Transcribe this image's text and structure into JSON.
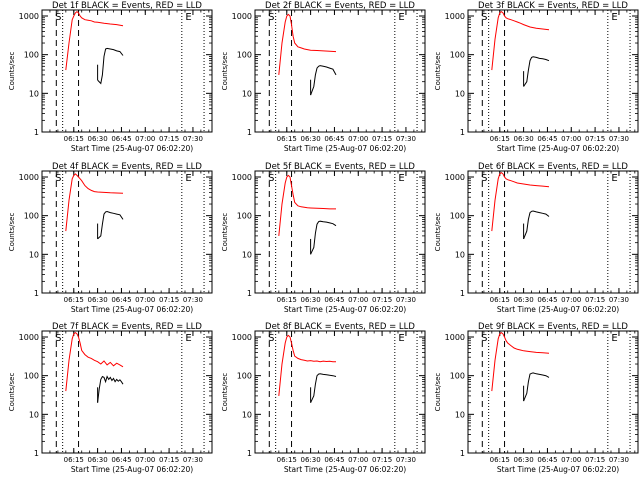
{
  "chart_data": [
    {
      "type": "line",
      "title": "Det 1f BLACK = Events, RED = LLD",
      "ylabel": "Counts/sec",
      "xlabel": "Start Time (25-Aug-07 06:02:20)",
      "xticks": [
        "06:15",
        "06:30",
        "06:45",
        "07:00",
        "07:15",
        "07:30"
      ],
      "yticks": [
        "1",
        "10",
        "100",
        "1000"
      ],
      "ylim": [
        1,
        1000
      ],
      "yscale": "log",
      "markers": [
        {
          "label": "S",
          "x": "06:02"
        },
        {
          "label": "E",
          "x": "07:24"
        }
      ],
      "series": [
        {
          "color": "#000000",
          "x": [
            0,
            2,
            3,
            4,
            5,
            6,
            8,
            10,
            12,
            14,
            16
          ],
          "values": [
            22,
            18,
            30,
            90,
            140,
            145,
            140,
            135,
            125,
            120,
            95
          ]
        },
        {
          "color": "#ff0000",
          "x": [
            -20,
            -18,
            -16,
            -15,
            -14,
            -13,
            -12,
            -11,
            -10,
            -8,
            -6,
            -4,
            -2,
            0,
            4,
            8,
            12,
            16
          ],
          "values": [
            40,
            200,
            800,
            1000,
            1200,
            1300,
            1200,
            1000,
            900,
            800,
            780,
            750,
            700,
            690,
            650,
            620,
            600,
            560
          ]
        }
      ]
    },
    {
      "type": "line",
      "title": "Det 2f BLACK = Events, RED = LLD",
      "ylabel": "Counts/sec",
      "xlabel": "Start Time (25-Aug-07 06:02:20)",
      "xticks": [
        "06:15",
        "06:30",
        "06:45",
        "07:00",
        "07:15",
        "07:30"
      ],
      "yticks": [
        "1",
        "10",
        "100",
        "1000"
      ],
      "ylim": [
        1,
        1000
      ],
      "yscale": "log",
      "markers": [
        {
          "label": "S",
          "x": "06:02"
        },
        {
          "label": "E",
          "x": "07:24"
        }
      ],
      "series": [
        {
          "color": "#000000",
          "x": [
            0,
            2,
            3,
            4,
            5,
            6,
            8,
            10,
            12,
            14,
            16
          ],
          "values": [
            9,
            15,
            30,
            45,
            50,
            52,
            50,
            48,
            45,
            42,
            30
          ]
        },
        {
          "color": "#ff0000",
          "x": [
            -20,
            -18,
            -16,
            -15,
            -14,
            -13,
            -12,
            -11,
            -10,
            -8,
            -6,
            -4,
            -2,
            0,
            4,
            8,
            12,
            16
          ],
          "values": [
            30,
            200,
            700,
            1000,
            1100,
            1000,
            600,
            300,
            200,
            160,
            150,
            140,
            135,
            130,
            128,
            125,
            122,
            120
          ]
        }
      ]
    },
    {
      "type": "line",
      "title": "Det 3f BLACK = Events, RED = LLD",
      "ylabel": "Counts/sec",
      "xlabel": "Start Time (25-Aug-07 06:02:20)",
      "xticks": [
        "06:15",
        "06:30",
        "06:45",
        "07:00",
        "07:15",
        "07:30"
      ],
      "yticks": [
        "1",
        "10",
        "100",
        "1000"
      ],
      "ylim": [
        1,
        1000
      ],
      "yscale": "log",
      "markers": [
        {
          "label": "S",
          "x": "06:02"
        },
        {
          "label": "E",
          "x": "07:24"
        }
      ],
      "series": [
        {
          "color": "#000000",
          "x": [
            0,
            2,
            3,
            4,
            5,
            6,
            8,
            10,
            12,
            14,
            16
          ],
          "values": [
            15,
            20,
            40,
            70,
            85,
            88,
            85,
            80,
            78,
            75,
            70
          ]
        },
        {
          "color": "#ff0000",
          "x": [
            -20,
            -18,
            -16,
            -15,
            -14,
            -13,
            -12,
            -11,
            -10,
            -8,
            -6,
            -4,
            -2,
            0,
            4,
            8,
            12,
            16
          ],
          "values": [
            40,
            250,
            900,
            1200,
            1300,
            1200,
            1000,
            900,
            850,
            800,
            750,
            700,
            650,
            600,
            520,
            480,
            460,
            440
          ]
        }
      ]
    },
    {
      "type": "line",
      "title": "Det 4f BLACK = Events, RED = LLD",
      "ylabel": "Counts/sec",
      "xlabel": "Start Time (25-Aug-07 06:02:20)",
      "xticks": [
        "06:15",
        "06:30",
        "06:45",
        "07:00",
        "07:15",
        "07:30"
      ],
      "yticks": [
        "1",
        "10",
        "100",
        "1000"
      ],
      "ylim": [
        1,
        1000
      ],
      "yscale": "log",
      "markers": [
        {
          "label": "S",
          "x": "06:02"
        },
        {
          "label": "E",
          "x": "07:24"
        }
      ],
      "series": [
        {
          "color": "#000000",
          "x": [
            0,
            2,
            3,
            4,
            5,
            6,
            8,
            10,
            12,
            14,
            16
          ],
          "values": [
            25,
            30,
            60,
            110,
            125,
            128,
            120,
            115,
            110,
            105,
            80
          ]
        },
        {
          "color": "#ff0000",
          "x": [
            -20,
            -18,
            -16,
            -15,
            -14,
            -13,
            -12,
            -11,
            -10,
            -8,
            -6,
            -4,
            -2,
            0,
            4,
            8,
            12,
            16
          ],
          "values": [
            40,
            250,
            900,
            1100,
            1200,
            1100,
            1000,
            900,
            800,
            600,
            500,
            450,
            420,
            410,
            400,
            390,
            385,
            380
          ]
        }
      ]
    },
    {
      "type": "line",
      "title": "Det 5f BLACK = Events, RED = LLD",
      "ylabel": "Counts/sec",
      "xlabel": "Start Time (25-Aug-07 06:02:20)",
      "xticks": [
        "06:15",
        "06:30",
        "06:45",
        "07:00",
        "07:15",
        "07:30"
      ],
      "yticks": [
        "1",
        "10",
        "100",
        "1000"
      ],
      "ylim": [
        1,
        1000
      ],
      "yscale": "log",
      "markers": [
        {
          "label": "S",
          "x": "06:02"
        },
        {
          "label": "E",
          "x": "07:24"
        }
      ],
      "series": [
        {
          "color": "#000000",
          "x": [
            0,
            2,
            3,
            4,
            5,
            6,
            8,
            10,
            12,
            14,
            16
          ],
          "values": [
            10,
            15,
            35,
            60,
            70,
            72,
            70,
            68,
            65,
            62,
            55
          ]
        },
        {
          "color": "#ff0000",
          "x": [
            -20,
            -18,
            -16,
            -15,
            -14,
            -13,
            -12,
            -11,
            -10,
            -8,
            -6,
            -4,
            -2,
            0,
            4,
            8,
            12,
            16
          ],
          "values": [
            30,
            200,
            700,
            1000,
            1100,
            1000,
            600,
            350,
            220,
            180,
            170,
            165,
            160,
            158,
            155,
            153,
            150,
            150
          ]
        }
      ]
    },
    {
      "type": "line",
      "title": "Det 6f BLACK = Events, RED = LLD",
      "ylabel": "Counts/sec",
      "xlabel": "Start Time (25-Aug-07 06:02:20)",
      "xticks": [
        "06:15",
        "06:30",
        "06:45",
        "07:00",
        "07:15",
        "07:30"
      ],
      "yticks": [
        "1",
        "10",
        "100",
        "1000"
      ],
      "ylim": [
        1,
        1000
      ],
      "yscale": "log",
      "markers": [
        {
          "label": "S",
          "x": "06:02"
        },
        {
          "label": "E",
          "x": "07:24"
        }
      ],
      "series": [
        {
          "color": "#000000",
          "x": [
            0,
            2,
            3,
            4,
            5,
            6,
            8,
            10,
            12,
            14,
            16
          ],
          "values": [
            25,
            40,
            80,
            120,
            130,
            132,
            125,
            120,
            115,
            110,
            95
          ]
        },
        {
          "color": "#ff0000",
          "x": [
            -20,
            -18,
            -16,
            -15,
            -14,
            -13,
            -12,
            -11,
            -10,
            -8,
            -6,
            -4,
            -2,
            0,
            4,
            8,
            12,
            16
          ],
          "values": [
            40,
            250,
            900,
            1200,
            1300,
            1200,
            1000,
            900,
            850,
            800,
            750,
            700,
            680,
            660,
            620,
            600,
            580,
            560
          ]
        }
      ]
    },
    {
      "type": "line",
      "title": "Det 7f BLACK = Events, RED = LLD",
      "ylabel": "Counts/sec",
      "xlabel": "Start Time (25-Aug-07 06:02:20)",
      "xticks": [
        "06:15",
        "06:30",
        "06:45",
        "07:00",
        "07:15",
        "07:30"
      ],
      "yticks": [
        "1",
        "10",
        "100",
        "1000"
      ],
      "ylim": [
        1,
        1000
      ],
      "yscale": "log",
      "markers": [
        {
          "label": "S",
          "x": "06:02"
        },
        {
          "label": "E",
          "x": "07:24"
        }
      ],
      "series": [
        {
          "color": "#000000",
          "x": [
            0,
            1,
            2,
            3,
            4,
            5,
            6,
            7,
            8,
            9,
            10,
            11,
            12,
            13,
            14,
            15,
            16
          ],
          "values": [
            20,
            45,
            80,
            95,
            90,
            70,
            95,
            80,
            90,
            75,
            85,
            70,
            80,
            72,
            78,
            70,
            60
          ]
        },
        {
          "color": "#ff0000",
          "x": [
            -20,
            -18,
            -16,
            -15,
            -14,
            -13,
            -12,
            -11,
            -10,
            -8,
            -6,
            -4,
            -2,
            0,
            2,
            4,
            6,
            8,
            10,
            12,
            14,
            16
          ],
          "values": [
            40,
            250,
            900,
            1200,
            1300,
            1200,
            1000,
            700,
            450,
            350,
            300,
            280,
            250,
            230,
            200,
            240,
            190,
            220,
            180,
            210,
            190,
            170
          ]
        }
      ]
    },
    {
      "type": "line",
      "title": "Det 8f BLACK = Events, RED = LLD",
      "ylabel": "Counts/sec",
      "xlabel": "Start Time (25-Aug-07 06:02:20)",
      "xticks": [
        "06:15",
        "06:30",
        "06:45",
        "07:00",
        "07:15",
        "07:30"
      ],
      "yticks": [
        "1",
        "10",
        "100",
        "1000"
      ],
      "ylim": [
        1,
        1000
      ],
      "yscale": "log",
      "markers": [
        {
          "label": "S",
          "x": "06:02"
        },
        {
          "label": "E",
          "x": "07:24"
        }
      ],
      "series": [
        {
          "color": "#000000",
          "x": [
            0,
            2,
            3,
            4,
            5,
            6,
            8,
            10,
            12,
            14,
            16
          ],
          "values": [
            20,
            30,
            60,
            100,
            110,
            112,
            108,
            105,
            102,
            100,
            95
          ]
        },
        {
          "color": "#ff0000",
          "x": [
            -20,
            -18,
            -16,
            -15,
            -14,
            -13,
            -12,
            -11,
            -10,
            -8,
            -6,
            -4,
            -2,
            0,
            2,
            4,
            6,
            8,
            10,
            12,
            14,
            16
          ],
          "values": [
            30,
            200,
            700,
            1000,
            1100,
            1000,
            700,
            450,
            320,
            280,
            260,
            250,
            240,
            245,
            235,
            240,
            230,
            238,
            232,
            236,
            230,
            228
          ]
        }
      ]
    },
    {
      "type": "line",
      "title": "Det 9f BLACK = Events, RED = LLD",
      "ylabel": "Counts/sec",
      "xlabel": "Start Time (25-Aug-07 06:02:20)",
      "xticks": [
        "06:15",
        "06:30",
        "06:45",
        "07:00",
        "07:15",
        "07:30"
      ],
      "yticks": [
        "1",
        "10",
        "100",
        "1000"
      ],
      "ylim": [
        1,
        1000
      ],
      "yscale": "log",
      "markers": [
        {
          "label": "S",
          "x": "06:02"
        },
        {
          "label": "E",
          "x": "07:24"
        }
      ],
      "series": [
        {
          "color": "#000000",
          "x": [
            0,
            2,
            3,
            4,
            5,
            6,
            8,
            10,
            12,
            14,
            16
          ],
          "values": [
            22,
            35,
            70,
            110,
            115,
            118,
            112,
            108,
            104,
            100,
            90
          ]
        },
        {
          "color": "#ff0000",
          "x": [
            -20,
            -18,
            -16,
            -15,
            -14,
            -13,
            -12,
            -11,
            -10,
            -8,
            -6,
            -4,
            -2,
            0,
            4,
            8,
            12,
            16
          ],
          "values": [
            40,
            250,
            900,
            1200,
            1300,
            1200,
            1000,
            800,
            700,
            600,
            520,
            480,
            460,
            440,
            420,
            400,
            390,
            380
          ]
        }
      ]
    }
  ]
}
